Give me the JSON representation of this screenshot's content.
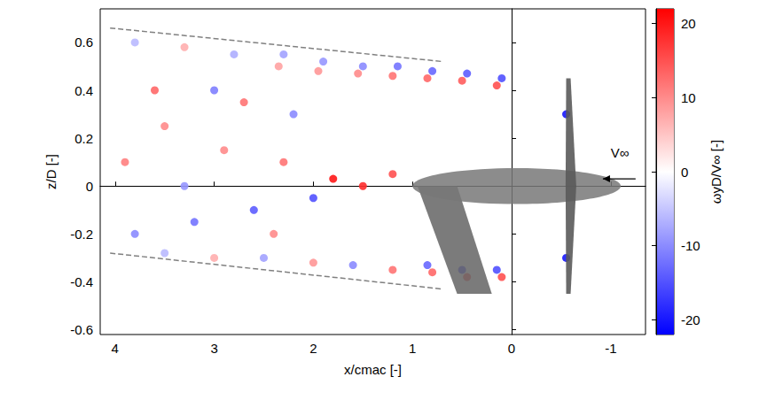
{
  "chart_data": {
    "type": "scatter",
    "x_label": "x/cmac [-]",
    "y_label": "z/D [-]",
    "xlim": [
      4.15,
      -1.35
    ],
    "xticks": [
      4,
      3,
      2,
      1,
      0,
      -1
    ],
    "ylim": [
      -0.62,
      0.74
    ],
    "yticks": [
      -0.6,
      -0.4,
      -0.2,
      0,
      0.2,
      0.4,
      0.6
    ],
    "grid": false,
    "marker": "circle",
    "annotations": [
      {
        "text": "V∞"
      }
    ],
    "vortices": {
      "x": [
        0.1,
        0.15,
        0.45,
        0.5,
        0.8,
        0.85,
        1.15,
        1.2,
        1.5,
        1.55,
        1.9,
        1.95,
        2.3,
        2.35,
        2.8,
        3.3,
        3.8,
        0.1,
        0.15,
        0.45,
        0.5,
        0.8,
        0.85,
        1.2,
        1.6,
        2.0,
        2.5,
        3.0,
        3.5,
        1.2,
        1.5,
        1.8,
        2.0,
        2.3,
        2.6,
        2.9,
        3.2,
        3.5,
        3.8,
        2.2,
        2.7,
        3.0,
        3.6,
        2.4,
        3.3,
        3.9,
        -0.55,
        -0.55
      ],
      "y": [
        0.45,
        0.42,
        0.47,
        0.44,
        0.48,
        0.45,
        0.5,
        0.46,
        0.5,
        0.47,
        0.52,
        0.48,
        0.55,
        0.5,
        0.55,
        0.58,
        0.6,
        -0.38,
        -0.35,
        -0.38,
        -0.35,
        -0.36,
        -0.33,
        -0.35,
        -0.33,
        -0.32,
        -0.3,
        -0.3,
        -0.28,
        0.05,
        0.0,
        0.03,
        -0.05,
        0.1,
        -0.1,
        0.15,
        -0.15,
        0.25,
        -0.2,
        0.3,
        0.35,
        0.4,
        0.4,
        -0.2,
        0.0,
        0.1,
        0.3,
        -0.3
      ],
      "values": [
        -15,
        15,
        -14,
        14,
        -13,
        13,
        -12,
        12,
        -10,
        10,
        -9,
        9,
        -8,
        8,
        -7,
        7,
        -6,
        15,
        -15,
        14,
        -14,
        13,
        -13,
        12,
        -10,
        9,
        -8,
        7,
        -6,
        15,
        18,
        20,
        -15,
        12,
        -14,
        10,
        -12,
        10,
        -10,
        -10,
        12,
        -11,
        13,
        10,
        -9,
        11,
        -20,
        -20
      ]
    },
    "slipstream_edges": [
      {
        "x": [
          4.05,
          0.7
        ],
        "y": [
          0.66,
          0.52
        ],
        "line_style": "dashed",
        "color": "#808080"
      },
      {
        "x": [
          4.05,
          0.7
        ],
        "y": [
          -0.28,
          -0.43
        ],
        "line_style": "dashed",
        "color": "#808080"
      }
    ],
    "colorbar": {
      "label": "ωyD/V∞ [-]",
      "range": [
        -22,
        22
      ],
      "ticks": [
        -20,
        -10,
        0,
        10,
        20
      ],
      "colors": [
        "#0000ff",
        "#ffffff",
        "#ff0000"
      ]
    }
  }
}
